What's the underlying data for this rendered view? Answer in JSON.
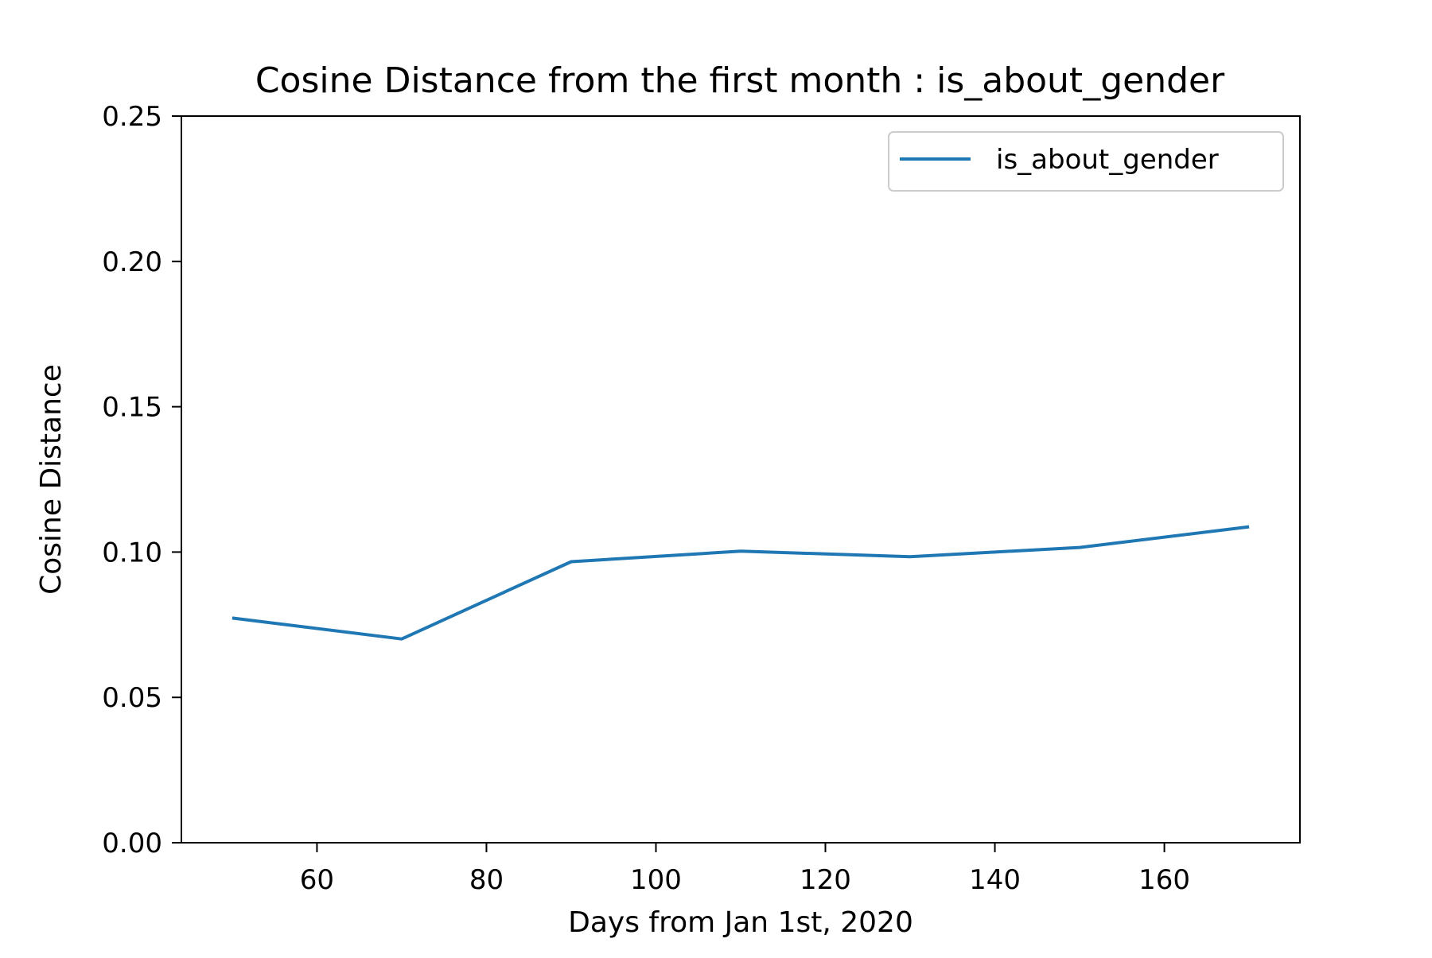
{
  "chart_data": {
    "type": "line",
    "title": "Cosine Distance from the first month : is_about_gender",
    "xlabel": "Days from Jan 1st, 2020",
    "ylabel": "Cosine Distance",
    "xlim": [
      44,
      176
    ],
    "ylim": [
      0,
      0.25
    ],
    "xticks": [
      60,
      80,
      100,
      120,
      140,
      160
    ],
    "yticks": [
      0.0,
      0.05,
      0.1,
      0.15,
      0.2,
      0.25
    ],
    "xtick_labels": [
      "60",
      "80",
      "100",
      "120",
      "140",
      "160"
    ],
    "ytick_labels": [
      "0.00",
      "0.05",
      "0.10",
      "0.15",
      "0.20",
      "0.25"
    ],
    "grid": false,
    "legend_position": "top-right",
    "series": [
      {
        "name": "is_about_gender",
        "color": "#1f77b4",
        "x": [
          50,
          70,
          90,
          110,
          130,
          150,
          170
        ],
        "y": [
          0.0773,
          0.0701,
          0.0967,
          0.1003,
          0.0984,
          0.1016,
          0.1087
        ]
      }
    ]
  }
}
